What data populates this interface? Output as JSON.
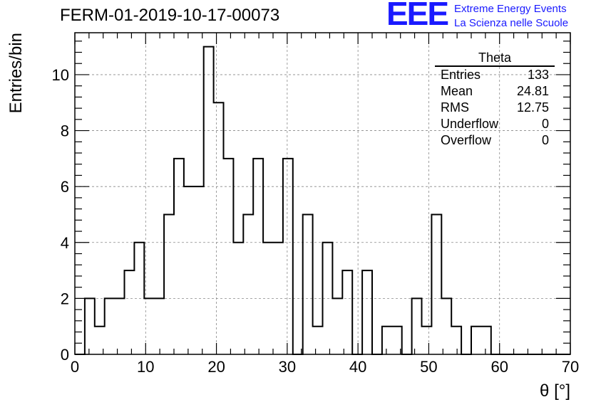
{
  "title": "FERM-01-2019-10-17-00073",
  "logo": {
    "mark": "EEE",
    "line1": "Extreme Energy Events",
    "line2": "La Scienza nelle Scuole",
    "color": "#1a1aff"
  },
  "stats_box": {
    "title": "Theta",
    "rows": [
      {
        "label": "Entries",
        "value": "133"
      },
      {
        "label": "Mean",
        "value": "24.81"
      },
      {
        "label": "RMS",
        "value": "12.75"
      },
      {
        "label": "Underflow",
        "value": "0"
      },
      {
        "label": "Overflow",
        "value": "0"
      }
    ]
  },
  "chart_data": {
    "type": "bar",
    "style": "step-histogram",
    "xlabel": "θ [°]",
    "ylabel": "Entries/bin",
    "xlim": [
      0,
      70
    ],
    "ylim": [
      0,
      11.5
    ],
    "bin_width": 1.4,
    "bin_start": 0,
    "xticks": [
      0,
      10,
      20,
      30,
      40,
      50,
      60,
      70
    ],
    "yticks": [
      0,
      2,
      4,
      6,
      8,
      10
    ],
    "grid": true,
    "values": [
      0,
      2,
      1,
      2,
      2,
      3,
      4,
      2,
      2,
      5,
      7,
      6,
      6,
      11,
      9,
      7,
      4,
      5,
      7,
      4,
      4,
      7,
      0,
      5,
      1,
      4,
      2,
      3,
      0,
      3,
      0,
      1,
      1,
      0,
      2,
      1,
      5,
      2,
      1,
      0,
      1,
      1,
      0,
      0,
      0,
      0,
      0,
      0,
      0,
      0
    ]
  }
}
